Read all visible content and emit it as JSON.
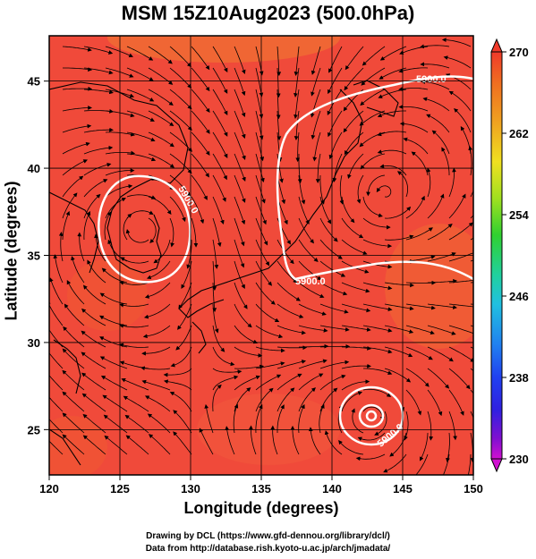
{
  "title": "MSM 15Z10Aug2023 (500.0hPa)",
  "xlabel": "Longitude (degrees)",
  "ylabel": "Latitude  (degrees)",
  "credit_line1": "Drawing by DCL (https://www.gfd-dennou.org/library/dcl/)",
  "credit_line2": "Data from http://database.rish.kyoto-u.ac.jp/arch/jmadata/",
  "map": {
    "lon_range": [
      120,
      150
    ],
    "lat_range": [
      22.4,
      47.6
    ],
    "x_ticks": [
      "120",
      "125",
      "130",
      "135",
      "140",
      "145",
      "150"
    ],
    "y_ticks": [
      "25",
      "30",
      "35",
      "40",
      "45"
    ],
    "contour_label": "5900.0",
    "field_color": "#f04a3a",
    "contour_color": "#ffffff",
    "coast_color": "#000000"
  },
  "colorbar": {
    "ticks": [
      "270",
      "262",
      "254",
      "246",
      "238",
      "230"
    ],
    "colors": [
      "#f03a2a",
      "#f07020",
      "#f0a020",
      "#f0e020",
      "#a0e020",
      "#30d030",
      "#20d0a0",
      "#20c0e0",
      "#2080f0",
      "#2040f0",
      "#3020e0",
      "#8010d0",
      "#d010d0"
    ]
  }
}
